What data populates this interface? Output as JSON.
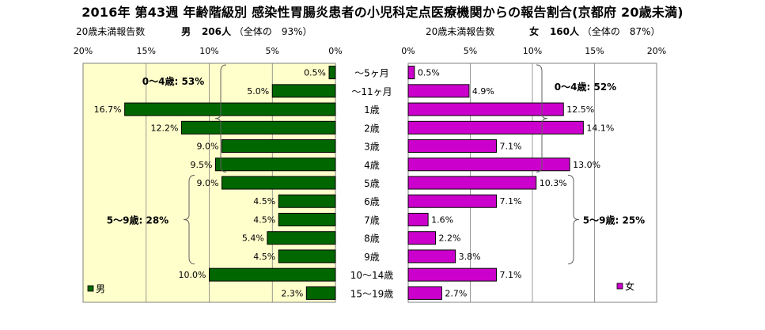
{
  "title": "2016年 第43週 年齢階級別 感染性胃腸炎患者の小児科定点医療機関からの報告割合(京都府 20歳未満)",
  "male_header": {
    "left": "20歳未満報告数",
    "sex": "男",
    "count": "206人",
    "share": "（全体の　93%）"
  },
  "female_header": {
    "left": "20歳未満報告数",
    "sex": "女",
    "count": "160人",
    "share": "（全体の　87%）"
  },
  "chart_data": {
    "type": "bar",
    "orientation": "horizontal-butterfly",
    "categories": [
      "～5ヶ月",
      "～11ヶ月",
      "1歳",
      "2歳",
      "3歳",
      "4歳",
      "5歳",
      "6歳",
      "7歳",
      "8歳",
      "9歳",
      "10～14歳",
      "15～19歳"
    ],
    "series": [
      {
        "name": "男",
        "color": "#006600",
        "values": [
          0.5,
          5.0,
          16.7,
          12.2,
          9.0,
          9.5,
          9.0,
          4.5,
          4.5,
          5.4,
          4.5,
          10.0,
          2.3
        ],
        "labels": [
          "0.5%",
          "5.0%",
          "16.7%",
          "12.2%",
          "9.0%",
          "9.5%",
          "9.0%",
          "4.5%",
          "4.5%",
          "5.4%",
          "4.5%",
          "10.0%",
          "2.3%"
        ]
      },
      {
        "name": "女",
        "color": "#cc00cc",
        "values": [
          0.5,
          4.9,
          12.5,
          14.1,
          7.1,
          13.0,
          10.3,
          7.1,
          1.6,
          2.2,
          3.8,
          7.1,
          2.7
        ],
        "labels": [
          "0.5%",
          "4.9%",
          "12.5%",
          "14.1%",
          "7.1%",
          "13.0%",
          "10.3%",
          "7.1%",
          "1.6%",
          "2.2%",
          "3.8%",
          "7.1%",
          "2.7%"
        ]
      }
    ],
    "male_ticks": [
      "20%",
      "15%",
      "10%",
      "5%",
      "0%"
    ],
    "female_ticks": [
      "0%",
      "5%",
      "10%",
      "15%",
      "20%"
    ],
    "xlim": [
      0,
      20
    ],
    "male_groups": [
      {
        "label": "0～4歳: 53%",
        "from": 0,
        "to": 5
      },
      {
        "label": "5～9歳: 28%",
        "from": 6,
        "to": 10
      }
    ],
    "female_groups": [
      {
        "label": "0～4歳: 52%",
        "from": 0,
        "to": 5
      },
      {
        "label": "5～9歳: 25%",
        "from": 6,
        "to": 10
      }
    ],
    "legend": {
      "male": "男",
      "female": "女"
    },
    "colors": {
      "male_bar": "#006600",
      "female_bar": "#cc00cc",
      "male_bg": "#ffffcc",
      "female_bg": "#ffffff"
    }
  }
}
